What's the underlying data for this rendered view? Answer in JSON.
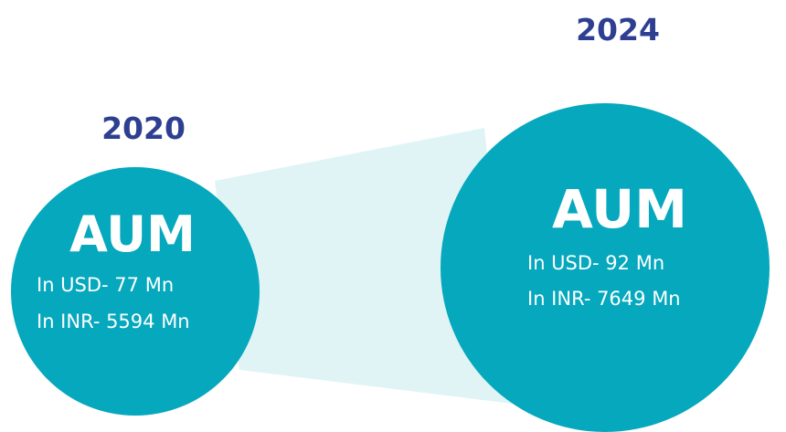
{
  "panels": [
    {
      "year": "2020",
      "title": "AUM",
      "lines": [
        "In USD- 77 Mn",
        "In INR- 5594 Mn"
      ]
    },
    {
      "year": "2024",
      "title": "AUM",
      "lines": [
        "In USD- 92 Mn",
        "In INR- 7649 Mn"
      ]
    }
  ]
}
